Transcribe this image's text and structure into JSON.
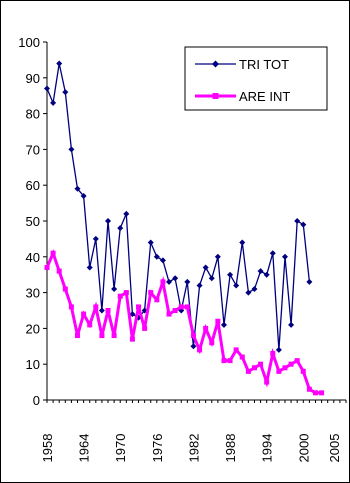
{
  "chart_data": {
    "type": "line",
    "title": "",
    "xlabel": "",
    "ylabel": "",
    "ylim": [
      0,
      100
    ],
    "yticks": [
      0,
      10,
      20,
      30,
      40,
      50,
      60,
      70,
      80,
      90,
      100
    ],
    "xlim": [
      1958,
      2007
    ],
    "xticks": [
      "1958",
      "1964",
      "1970",
      "1976",
      "1982",
      "1988",
      "1994",
      "2000",
      "2005"
    ],
    "grid": false,
    "legend_position": "top-right",
    "x": [
      1958,
      1959,
      1960,
      1961,
      1962,
      1963,
      1964,
      1965,
      1966,
      1967,
      1968,
      1969,
      1970,
      1971,
      1972,
      1973,
      1974,
      1975,
      1976,
      1977,
      1978,
      1979,
      1980,
      1981,
      1982,
      1983,
      1984,
      1985,
      1986,
      1987,
      1988,
      1989,
      1990,
      1991,
      1992,
      1993,
      1994,
      1995,
      1996,
      1997,
      1998,
      1999,
      2000,
      2001,
      2002,
      2003,
      2004,
      2005,
      2006,
      2007
    ],
    "series": [
      {
        "name": "TRI TOT",
        "color": "#000080",
        "marker": "diamond",
        "values": [
          87,
          83,
          94,
          86,
          70,
          59,
          57,
          37,
          45,
          25,
          50,
          31,
          48,
          52,
          24,
          23,
          25,
          44,
          40,
          39,
          33,
          34,
          25,
          33,
          15,
          32,
          37,
          34,
          40,
          21,
          35,
          32,
          44,
          30,
          31,
          36,
          35,
          41,
          14,
          40,
          21,
          50,
          49,
          33,
          null,
          null,
          null,
          null,
          null,
          null
        ]
      },
      {
        "name": "ARE INT",
        "color": "#ff00ff",
        "marker": "square",
        "values": [
          37,
          41,
          36,
          31,
          26,
          18,
          24,
          21,
          26,
          18,
          25,
          18,
          29,
          30,
          17,
          26,
          20,
          30,
          28,
          33,
          24,
          25,
          26,
          26,
          18,
          14,
          20,
          16,
          22,
          11,
          11,
          14,
          12,
          8,
          9,
          10,
          5,
          13,
          8,
          9,
          10,
          11,
          8,
          3,
          2,
          2,
          null,
          null,
          null,
          null
        ]
      }
    ]
  }
}
